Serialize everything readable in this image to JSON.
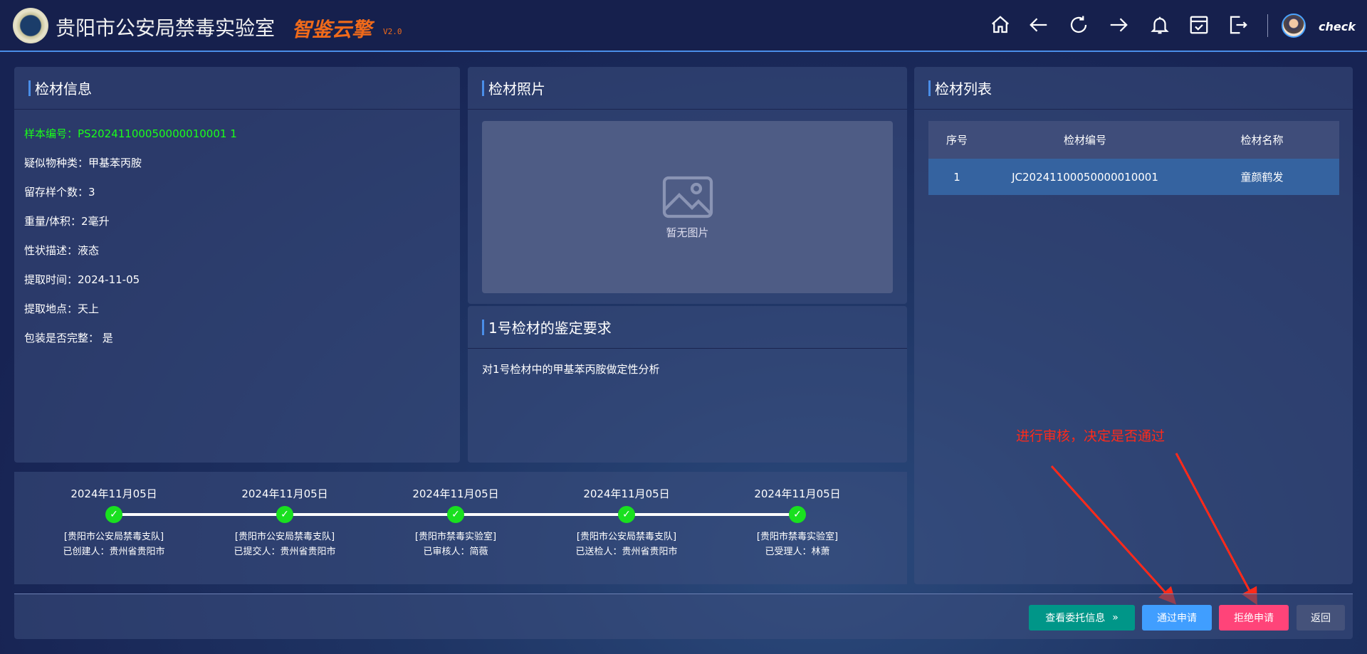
{
  "header": {
    "title": "贵阳市公安局禁毒实验室",
    "brand": "智鉴云擎",
    "version": "V2.0",
    "username": "check",
    "icons": [
      "home-icon",
      "back-arrow-icon",
      "refresh-icon",
      "forward-arrow-icon",
      "bell-icon",
      "calendar-check-icon",
      "logout-icon"
    ]
  },
  "info_panel": {
    "title": "检材信息",
    "fields": [
      {
        "text": "样本编号：PS20241100050000010001 1"
      },
      {
        "text": "疑似物种类：甲基苯丙胺"
      },
      {
        "text": "留存样个数：3"
      },
      {
        "text": "重量/体积：2毫升"
      },
      {
        "text": "性状描述：液态"
      },
      {
        "text": "提取时间：2024-11-05"
      },
      {
        "text": "提取地点：天上"
      },
      {
        "text": "包装是否完整： 是"
      }
    ]
  },
  "photo_panel": {
    "title": "检材照片",
    "empty_text": "暂无图片"
  },
  "requirement_panel": {
    "title": "1号检材的鉴定要求",
    "content": "对1号检材中的甲基苯丙胺做定性分析"
  },
  "list_panel": {
    "title": "检材列表",
    "columns": [
      "序号",
      "检材编号",
      "检材名称"
    ],
    "rows": [
      [
        "1",
        "JC20241100050000010001",
        "童颜鹤发"
      ]
    ]
  },
  "timeline": [
    {
      "date": "2024年11月05日",
      "org": "[贵阳市公安局禁毒支队]",
      "person": "已创建人：贵州省贵阳市"
    },
    {
      "date": "2024年11月05日",
      "org": "[贵阳市公安局禁毒支队]",
      "person": "已提交人：贵州省贵阳市"
    },
    {
      "date": "2024年11月05日",
      "org": "[贵阳市禁毒实验室]",
      "person": "已审核人：简薇"
    },
    {
      "date": "2024年11月05日",
      "org": "[贵阳市公安局禁毒支队]",
      "person": "已送检人：贵州省贵阳市"
    },
    {
      "date": "2024年11月05日",
      "org": "[贵阳市禁毒实验室]",
      "person": "已受理人：林萧"
    }
  ],
  "annotation": "进行审核，决定是否通过",
  "actions": {
    "view_label": "查看委托信息",
    "approve_label": "通过申请",
    "reject_label": "拒绝申请",
    "back_label": "返回"
  },
  "colors": {
    "accent": "#4a8ee8",
    "approve": "#409eff",
    "reject": "#ff4479",
    "view": "#009688",
    "annotation": "#ff2a1a",
    "done": "#19e01f"
  }
}
